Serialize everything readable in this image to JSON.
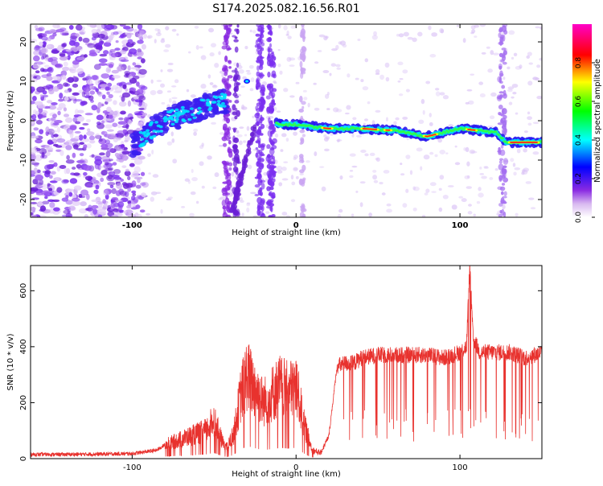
{
  "title": "S174.2025.082.16.56.R01",
  "chart_data": [
    {
      "type": "heatmap",
      "xlabel": "Height of straight line (km)",
      "ylabel": "Frequency (Hz)",
      "xlim": [
        -162,
        150
      ],
      "ylim": [
        -24.5,
        24.5
      ],
      "xticks": [
        -100,
        0,
        100
      ],
      "yticks": [
        -20,
        -10,
        0,
        10,
        20
      ],
      "colorbar": {
        "label": "Normalized spectral amplitude",
        "range": [
          0,
          1
        ],
        "ticks": [
          "0.0",
          "0.2",
          "0.4",
          "0.6",
          "0.8"
        ],
        "colors": [
          "#ffffff",
          "#8a2be2",
          "#0000ff",
          "#00ffff",
          "#00ff00",
          "#ffff00",
          "#ff0000",
          "#ff00ff"
        ]
      },
      "trace": [
        {
          "x": -100,
          "y": -7
        },
        {
          "x": -90,
          "y": -3
        },
        {
          "x": -80,
          "y": 0
        },
        {
          "x": -70,
          "y": 1.5
        },
        {
          "x": -60,
          "y": 3
        },
        {
          "x": -45,
          "y": 5
        },
        {
          "x": -10,
          "y": -1
        },
        {
          "x": 0,
          "y": -1
        },
        {
          "x": 20,
          "y": -2
        },
        {
          "x": 40,
          "y": -2
        },
        {
          "x": 60,
          "y": -2.5
        },
        {
          "x": 80,
          "y": -4
        },
        {
          "x": 100,
          "y": -2
        },
        {
          "x": 122,
          "y": -3
        },
        {
          "x": 128,
          "y": -5.5
        },
        {
          "x": 150,
          "y": -5.5
        }
      ]
    },
    {
      "type": "line",
      "xlabel": "Height of straight line (km)",
      "ylabel": "SNR (10 * v/v)",
      "xlim": [
        -162,
        150
      ],
      "ylim": [
        0,
        690
      ],
      "xticks": [
        -100,
        0,
        100
      ],
      "yticks": [
        0,
        200,
        400,
        600
      ],
      "series": [
        {
          "color": "#e8322e",
          "x": [
            -162,
            -140,
            -120,
            -100,
            -85,
            -80,
            -75,
            -70,
            -65,
            -60,
            -55,
            -50,
            -45,
            -42,
            -38,
            -34,
            -30,
            -25,
            -20,
            -15,
            -10,
            -5,
            0,
            5,
            10,
            15,
            20,
            25,
            30,
            35,
            40,
            50,
            60,
            70,
            80,
            90,
            100,
            104,
            106,
            108,
            112,
            120,
            130,
            140,
            150
          ],
          "y": [
            15,
            15,
            16,
            18,
            30,
            50,
            60,
            70,
            80,
            90,
            100,
            140,
            60,
            40,
            90,
            220,
            300,
            250,
            200,
            230,
            260,
            240,
            260,
            120,
            30,
            20,
            80,
            330,
            340,
            340,
            360,
            370,
            370,
            370,
            370,
            360,
            380,
            400,
            690,
            430,
            380,
            380,
            380,
            360,
            380
          ]
        }
      ]
    }
  ]
}
